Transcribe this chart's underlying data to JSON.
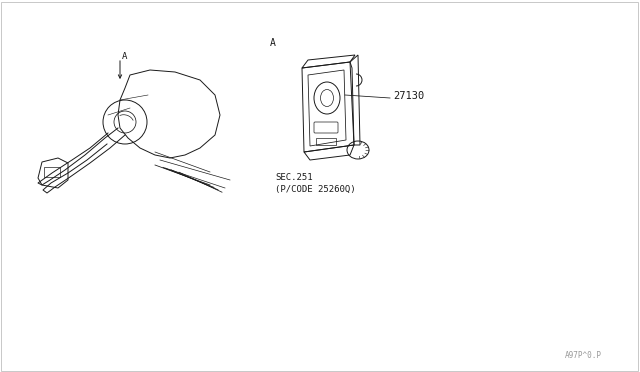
{
  "bg_color": "#ffffff",
  "border_color": "#c8c8c8",
  "line_color": "#1a1a1a",
  "label_A_left": "A",
  "label_A_right": "A",
  "part_number": "27130",
  "sec_text": "SEC.251",
  "pcode_text": "(P/CODE 25260Q)",
  "drawing_id": "A97P^0.P",
  "fig_width": 6.4,
  "fig_height": 3.72,
  "dpi": 100
}
